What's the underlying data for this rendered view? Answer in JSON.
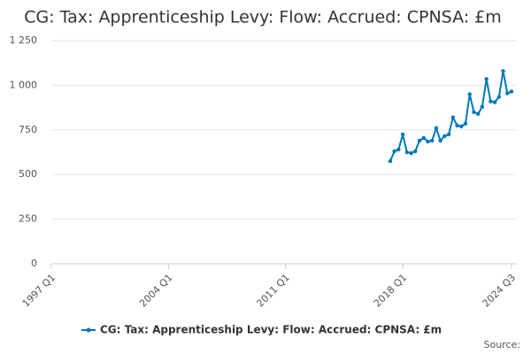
{
  "chart_data": {
    "type": "line",
    "title": "CG: Tax: Apprenticeship Levy: Flow: Accrued: CPNSA: £m",
    "source": "Source:",
    "categories": [
      "1997 Q1",
      null,
      null,
      null,
      null,
      null,
      null,
      null,
      null,
      null,
      null,
      null,
      null,
      null,
      null,
      null,
      null,
      null,
      null,
      null,
      null,
      null,
      null,
      null,
      null,
      null,
      null,
      null,
      "2004 Q1",
      null,
      null,
      null,
      null,
      null,
      null,
      null,
      null,
      null,
      null,
      null,
      null,
      null,
      null,
      null,
      null,
      null,
      null,
      null,
      null,
      null,
      null,
      null,
      null,
      null,
      null,
      null,
      "2011 Q1",
      null,
      null,
      null,
      null,
      null,
      null,
      null,
      null,
      null,
      null,
      null,
      null,
      null,
      null,
      null,
      null,
      null,
      null,
      null,
      null,
      null,
      null,
      null,
      null,
      null,
      null,
      null,
      "2018 Q1",
      null,
      null,
      null,
      null,
      null,
      null,
      null,
      null,
      null,
      null,
      null,
      null,
      null,
      null,
      null,
      null,
      null,
      null,
      null,
      null,
      null,
      null,
      null,
      null,
      null,
      "2024 Q3"
    ],
    "series": [
      {
        "name": "CG: Tax: Apprenticeship Levy: Flow: Accrued: CPNSA: £m",
        "color": "#0077b6",
        "values": [
          null,
          null,
          null,
          null,
          null,
          null,
          null,
          null,
          null,
          null,
          null,
          null,
          null,
          null,
          null,
          null,
          null,
          null,
          null,
          null,
          null,
          null,
          null,
          null,
          null,
          null,
          null,
          null,
          null,
          null,
          null,
          null,
          null,
          null,
          null,
          null,
          null,
          null,
          null,
          null,
          null,
          null,
          null,
          null,
          null,
          null,
          null,
          null,
          null,
          null,
          null,
          null,
          null,
          null,
          null,
          null,
          null,
          null,
          null,
          null,
          null,
          null,
          null,
          null,
          null,
          null,
          null,
          null,
          null,
          null,
          null,
          null,
          null,
          null,
          null,
          null,
          null,
          null,
          null,
          null,
          null,
          575,
          630,
          640,
          725,
          625,
          620,
          630,
          690,
          705,
          685,
          690,
          760,
          690,
          715,
          725,
          820,
          775,
          770,
          785,
          950,
          850,
          840,
          880,
          1035,
          910,
          905,
          935,
          1080,
          955,
          965
        ]
      }
    ],
    "ylim": [
      0,
      1250
    ],
    "yticks": [
      0,
      250,
      500,
      750,
      {
        "value": 1000,
        "label": "1 000"
      },
      {
        "value": 1250,
        "label": "1 250"
      }
    ],
    "grid": true
  }
}
